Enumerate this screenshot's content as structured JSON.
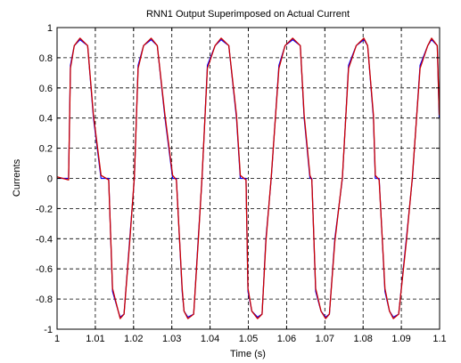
{
  "chart_data": {
    "type": "line",
    "title": "RNN1 Output Superimposed on Actual Current",
    "xlabel": "Time (s)",
    "ylabel": "Currents",
    "xlim": [
      1.0,
      1.1
    ],
    "ylim": [
      -1.0,
      1.0
    ],
    "xticks": [
      1,
      1.01,
      1.02,
      1.03,
      1.04,
      1.05,
      1.06,
      1.07,
      1.08,
      1.09,
      1.1
    ],
    "xtick_labels": [
      "1",
      "1.01",
      "1.02",
      "1.03",
      "1.04",
      "1.05",
      "1.06",
      "1.07",
      "1.08",
      "1.09",
      "1.1"
    ],
    "yticks": [
      -1,
      -0.8,
      -0.6,
      -0.4,
      -0.2,
      0,
      0.2,
      0.4,
      0.6,
      0.8,
      1
    ],
    "ytick_labels": [
      "-1",
      "-0.8",
      "-0.6",
      "-0.4",
      "-0.2",
      "0",
      "0.2",
      "0.4",
      "0.6",
      "0.8",
      "1"
    ],
    "grid": true,
    "grid_style": "dashed",
    "period": 0.01667,
    "first_rise": 1.0035,
    "series": [
      {
        "color": "#0000ff",
        "x": [
          1.0,
          1.003,
          1.0035,
          1.0045,
          1.006,
          1.008,
          1.0095,
          1.0115,
          1.0135,
          1.0145,
          1.016,
          1.0165,
          1.0175,
          1.019,
          1.0202,
          1.0212,
          1.0226,
          1.0246,
          1.0262,
          1.0282,
          1.0302,
          1.0312,
          1.0327,
          1.0332,
          1.0342,
          1.0357,
          1.0369,
          1.0379,
          1.0393,
          1.0413,
          1.0429,
          1.0449,
          1.0469,
          1.0479,
          1.0494,
          1.0499,
          1.0509,
          1.0524,
          1.0536,
          1.0546,
          1.056,
          1.058,
          1.0596,
          1.0616,
          1.0636,
          1.0646,
          1.0661,
          1.0666,
          1.0676,
          1.069,
          1.0702,
          1.0712,
          1.0726,
          1.0746,
          1.0762,
          1.0782,
          1.0802,
          1.0812,
          1.0827,
          1.0832,
          1.0842,
          1.0857,
          1.0869,
          1.0879,
          1.0893,
          1.0913,
          1.0929,
          1.0949,
          1.0969,
          1.0979,
          1.0994,
          1.0999
        ],
        "y": [
          0.0,
          0.0,
          0.75,
          0.88,
          0.92,
          0.88,
          0.4,
          0.0,
          0.0,
          -0.75,
          -0.88,
          -0.92,
          -0.9,
          -0.4,
          0.0,
          0.75,
          0.88,
          0.92,
          0.88,
          0.4,
          0.0,
          0.0,
          -0.75,
          -0.88,
          -0.92,
          -0.9,
          -0.4,
          0.0,
          0.75,
          0.88,
          0.92,
          0.88,
          0.4,
          0.0,
          0.0,
          -0.75,
          -0.88,
          -0.92,
          -0.9,
          -0.4,
          0.0,
          0.75,
          0.88,
          0.92,
          0.88,
          0.4,
          0.0,
          0.0,
          -0.75,
          -0.88,
          -0.92,
          -0.9,
          -0.4,
          0.0,
          0.75,
          0.88,
          0.92,
          0.88,
          0.4,
          0.0,
          0.0,
          -0.75,
          -0.88,
          -0.92,
          -0.9,
          -0.4,
          0.0,
          0.75,
          0.88,
          0.92,
          0.88,
          0.4
        ]
      },
      {
        "color": "#cc0000",
        "x": [
          1.0,
          1.003,
          1.0035,
          1.0045,
          1.006,
          1.008,
          1.0095,
          1.0115,
          1.0135,
          1.0145,
          1.016,
          1.0165,
          1.0175,
          1.019,
          1.0202,
          1.0212,
          1.0226,
          1.0246,
          1.0262,
          1.0282,
          1.0302,
          1.0312,
          1.0327,
          1.0332,
          1.0342,
          1.0357,
          1.0369,
          1.0379,
          1.0393,
          1.0413,
          1.0429,
          1.0449,
          1.0469,
          1.0479,
          1.0494,
          1.0499,
          1.0509,
          1.0524,
          1.0536,
          1.0546,
          1.056,
          1.058,
          1.0596,
          1.0616,
          1.0636,
          1.0646,
          1.0661,
          1.0666,
          1.0676,
          1.069,
          1.0702,
          1.0712,
          1.0726,
          1.0746,
          1.0762,
          1.0782,
          1.0802,
          1.0812,
          1.0827,
          1.0832,
          1.0842,
          1.0857,
          1.0869,
          1.0879,
          1.0893,
          1.0913,
          1.0929,
          1.0949,
          1.0969,
          1.0979,
          1.0994,
          1.0999
        ],
        "y": [
          0.01,
          -0.01,
          0.73,
          0.88,
          0.93,
          0.88,
          0.42,
          0.02,
          -0.01,
          -0.73,
          -0.88,
          -0.93,
          -0.9,
          -0.42,
          0.01,
          0.73,
          0.88,
          0.93,
          0.88,
          0.42,
          0.02,
          -0.01,
          -0.73,
          -0.88,
          -0.93,
          -0.9,
          -0.42,
          0.01,
          0.73,
          0.88,
          0.93,
          0.88,
          0.42,
          0.02,
          -0.01,
          -0.73,
          -0.88,
          -0.93,
          -0.9,
          -0.42,
          0.01,
          0.73,
          0.88,
          0.93,
          0.88,
          0.42,
          0.02,
          -0.01,
          -0.73,
          -0.88,
          -0.93,
          -0.9,
          -0.42,
          0.01,
          0.73,
          0.88,
          0.93,
          0.88,
          0.42,
          0.02,
          -0.01,
          -0.73,
          -0.88,
          -0.93,
          -0.9,
          -0.42,
          0.01,
          0.73,
          0.88,
          0.93,
          0.88,
          0.42
        ]
      }
    ]
  }
}
